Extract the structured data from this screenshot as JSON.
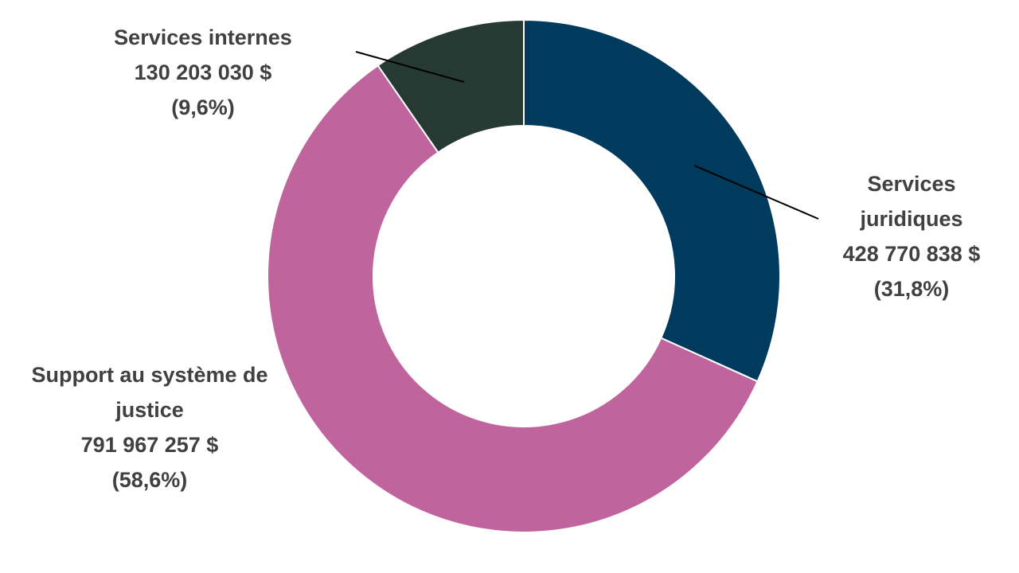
{
  "chart_data": {
    "type": "donut",
    "categories": [
      "Services juridiques",
      "Support au système de justice",
      "Services internes"
    ],
    "values": [
      428770838,
      791967257,
      130203030
    ],
    "value_labels": [
      "428 770 838 $",
      "791 967 257 $",
      "130 203 030 $"
    ],
    "percentages": [
      31.8,
      58.6,
      9.6
    ],
    "percentage_labels": [
      "(31,8%)",
      "(58,6%)",
      "(9,6%)"
    ],
    "colors": [
      "#003a5d",
      "#bf649d",
      "#263a33"
    ]
  }
}
